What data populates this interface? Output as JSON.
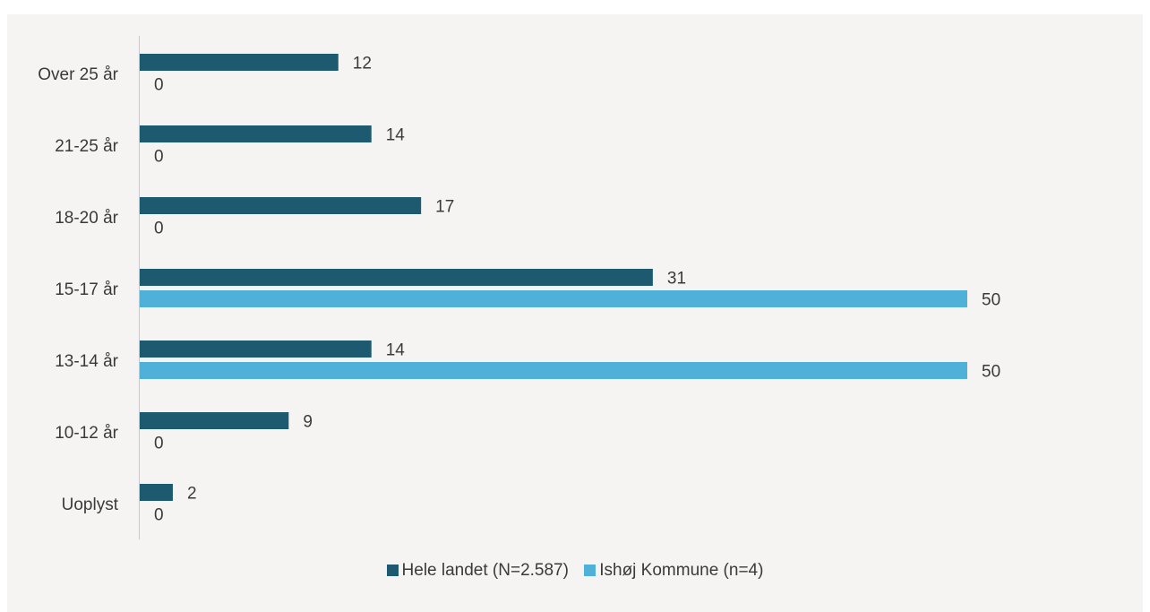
{
  "caption": "",
  "chart_data": {
    "type": "bar",
    "orientation": "horizontal",
    "categories": [
      "Over 25 år",
      "21-25 år",
      "18-20 år",
      "15-17 år",
      "13-14 år",
      "10-12 år",
      "Uoplyst"
    ],
    "series": [
      {
        "name": "Hele landet (N=2.587)",
        "color": "#1d5a70",
        "values": [
          12,
          14,
          17,
          31,
          14,
          9,
          2
        ]
      },
      {
        "name": "Ishøj Kommune (n=4)",
        "color": "#4fb0d8",
        "values": [
          0,
          0,
          0,
          50,
          50,
          0,
          0
        ]
      }
    ],
    "xlim": [
      0,
      50
    ],
    "grid": false,
    "legend_position": "bottom",
    "data_labels": true
  }
}
